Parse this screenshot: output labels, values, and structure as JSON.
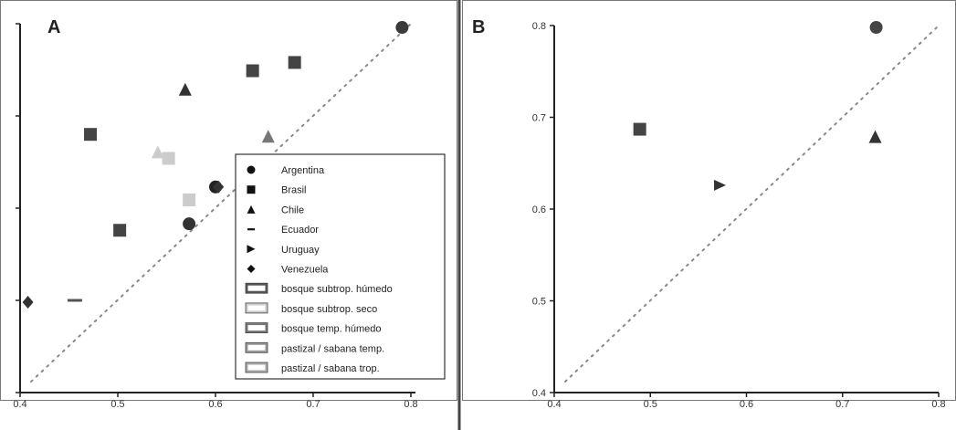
{
  "chart_data": [
    {
      "type": "scatter",
      "panel_label": "A",
      "xlim": [
        0.4,
        0.8
      ],
      "ylim": [
        0.4,
        0.8
      ],
      "x_ticks": [
        "0.4",
        "0.5",
        "0.6",
        "0.7",
        "0.8"
      ],
      "y_ticks_labeled": false,
      "diagonal_reference": true,
      "legend": {
        "placement": "center-right",
        "country_entries": [
          {
            "label": "Argentina",
            "marker": "circle"
          },
          {
            "label": "Brasil",
            "marker": "square"
          },
          {
            "label": "Chile",
            "marker": "triangle"
          },
          {
            "label": "Ecuador",
            "marker": "dash"
          },
          {
            "label": "Uruguay",
            "marker": "right-triangle"
          },
          {
            "label": "Venezuela",
            "marker": "diamond"
          }
        ],
        "biome_entries": [
          {
            "label": "bosque subtrop. húmedo",
            "color": "#555555"
          },
          {
            "label": "bosque subtrop. seco",
            "color": "#cccccc"
          },
          {
            "label": "bosque temp. húmedo",
            "color": "#777777"
          },
          {
            "label": "pastizal / sabana  temp.",
            "color": "#999999"
          },
          {
            "label": "pastizal / sabana trop.",
            "color": "#aaaaaa"
          }
        ]
      },
      "points": [
        {
          "x": 0.791,
          "y": 0.796,
          "marker": "circle",
          "color": "#3a3a3a"
        },
        {
          "x": 0.573,
          "y": 0.583,
          "marker": "circle",
          "color": "#333333"
        },
        {
          "x": 0.6,
          "y": 0.623,
          "marker": "circle",
          "color": "#222222"
        },
        {
          "x": 0.681,
          "y": 0.758,
          "marker": "square",
          "color": "#444444"
        },
        {
          "x": 0.638,
          "y": 0.749,
          "marker": "square",
          "color": "#444444"
        },
        {
          "x": 0.472,
          "y": 0.68,
          "marker": "square",
          "color": "#444444"
        },
        {
          "x": 0.502,
          "y": 0.576,
          "marker": "square",
          "color": "#444444"
        },
        {
          "x": 0.569,
          "y": 0.728,
          "marker": "triangle",
          "color": "#333333"
        },
        {
          "x": 0.654,
          "y": 0.677,
          "marker": "triangle",
          "color": "#777777"
        },
        {
          "x": 0.541,
          "y": 0.66,
          "marker": "triangle",
          "color": "#cccccc"
        },
        {
          "x": 0.552,
          "y": 0.654,
          "marker": "square",
          "color": "#cccccc"
        },
        {
          "x": 0.573,
          "y": 0.609,
          "marker": "square",
          "color": "#cccccc"
        },
        {
          "x": 0.456,
          "y": 0.5,
          "marker": "dash",
          "color": "#555555"
        },
        {
          "x": 0.408,
          "y": 0.498,
          "marker": "diamond",
          "color": "#333333"
        },
        {
          "x": 0.603,
          "y": 0.623,
          "marker": "diamond",
          "color": "#333333"
        }
      ]
    },
    {
      "type": "scatter",
      "panel_label": "B",
      "xlim": [
        0.4,
        0.8
      ],
      "ylim": [
        0.4,
        0.8
      ],
      "x_ticks": [
        "0.4",
        "0.5",
        "0.6",
        "0.7",
        "0.8"
      ],
      "y_ticks": [
        "0.4",
        "0.5",
        "0.6",
        "0.7",
        "0.8"
      ],
      "diagonal_reference": true,
      "points": [
        {
          "x": 0.735,
          "y": 0.798,
          "marker": "circle",
          "color": "#444444"
        },
        {
          "x": 0.489,
          "y": 0.687,
          "marker": "square",
          "color": "#444444"
        },
        {
          "x": 0.734,
          "y": 0.678,
          "marker": "triangle",
          "color": "#333333"
        },
        {
          "x": 0.572,
          "y": 0.626,
          "marker": "right-triangle",
          "color": "#333333"
        }
      ]
    }
  ]
}
